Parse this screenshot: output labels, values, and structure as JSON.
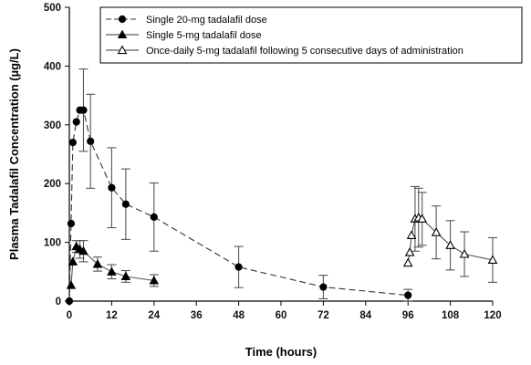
{
  "chart_data": {
    "type": "line",
    "xlabel": "Time (hours)",
    "ylabel": "Plasma Tadalafil Concentration (µg/L)",
    "xlim": [
      0,
      120
    ],
    "ylim": [
      0,
      500
    ],
    "xticks": [
      0,
      12,
      24,
      36,
      48,
      60,
      72,
      84,
      96,
      108,
      120
    ],
    "yticks": [
      0,
      100,
      200,
      300,
      400,
      500
    ],
    "grid": false,
    "legend_position": "top-right",
    "series": [
      {
        "name": "Single 20-mg tadalafil dose",
        "marker": "circle-filled",
        "line": "dashed",
        "x": [
          0,
          0.5,
          1,
          2,
          3,
          4,
          6,
          12,
          16,
          24,
          48,
          72,
          96
        ],
        "y": [
          0,
          132,
          270,
          305,
          325,
          325,
          272,
          193,
          165,
          143,
          58,
          24,
          10
        ],
        "err": [
          0,
          0,
          0,
          0,
          0,
          70,
          80,
          68,
          60,
          58,
          35,
          20,
          10
        ]
      },
      {
        "name": "Single 5-mg tadalafil dose",
        "marker": "triangle-filled",
        "line": "solid",
        "x": [
          0.5,
          1,
          2,
          3,
          4,
          8,
          12,
          16,
          24
        ],
        "y": [
          27,
          67,
          93,
          88,
          85,
          63,
          50,
          42,
          35
        ],
        "err": [
          0,
          0,
          10,
          15,
          18,
          12,
          12,
          10,
          10
        ]
      },
      {
        "name": "Once-daily 5-mg tadalafil following 5 consecutive days of administration",
        "marker": "triangle-open",
        "line": "solid",
        "x": [
          96,
          96.5,
          97,
          98,
          99,
          100,
          104,
          108,
          112,
          120
        ],
        "y": [
          65,
          83,
          112,
          140,
          142,
          140,
          117,
          95,
          80,
          70
        ],
        "err": [
          0,
          0,
          0,
          55,
          50,
          45,
          45,
          42,
          38,
          38
        ]
      }
    ]
  }
}
